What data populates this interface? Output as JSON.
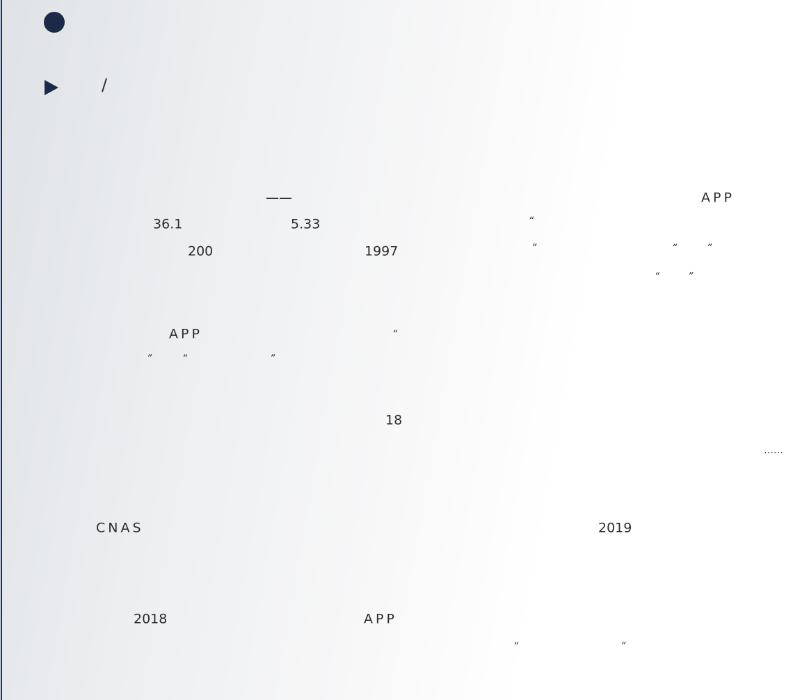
{
  "symbols": {
    "separator": "/"
  },
  "paragraphs": [
    {
      "fragments": [
        "——",
        "APP",
        "36.1",
        "5.33",
        "“",
        "200",
        "1997",
        "”",
        "“",
        "”",
        "“",
        "”"
      ]
    },
    {
      "fragments": [
        "APP",
        "“",
        "”",
        "“",
        "”"
      ]
    },
    {
      "fragments": [
        "18",
        "……"
      ]
    },
    {
      "fragments": [
        "CNAS",
        "2019"
      ]
    },
    {
      "fragments": [
        "2018",
        "APP",
        "“",
        "”"
      ]
    }
  ]
}
